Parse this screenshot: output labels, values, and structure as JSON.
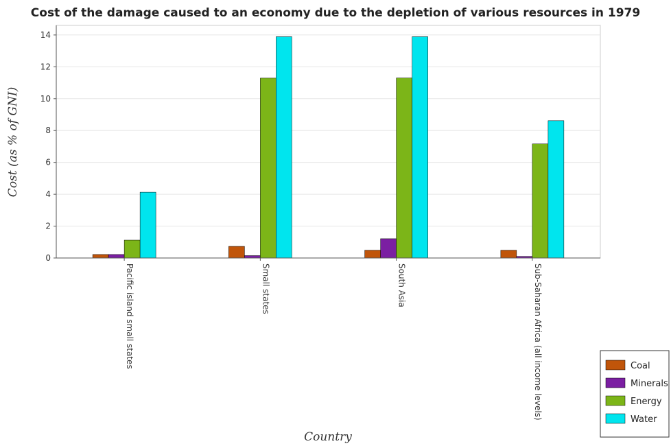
{
  "chart_data": {
    "type": "bar",
    "title": "Cost of the damage caused to an economy due to the depletion of various resources in 1979",
    "xlabel": "Country",
    "ylabel": "Cost (as % of GNI)",
    "categories": [
      "Pacific island small states",
      "Small states",
      "South Asia",
      "Sub-Saharan Africa (all income levels)"
    ],
    "series": [
      {
        "name": "Coal",
        "color": "#c0550a",
        "values": [
          0.22,
          0.73,
          0.49,
          0.49
        ]
      },
      {
        "name": "Minerals",
        "color": "#7b1fa2",
        "values": [
          0.22,
          0.15,
          1.21,
          0.1
        ]
      },
      {
        "name": "Energy",
        "color": "#7cb518",
        "values": [
          1.12,
          11.29,
          11.3,
          7.16
        ]
      },
      {
        "name": "Water",
        "color": "#00e5ee",
        "values": [
          4.13,
          13.89,
          13.89,
          8.62
        ]
      }
    ],
    "ylim": [
      0,
      14.6
    ],
    "yticks": [
      0,
      2,
      4,
      6,
      8,
      10,
      12,
      14
    ],
    "grid": true,
    "legend": "bottom-right"
  }
}
